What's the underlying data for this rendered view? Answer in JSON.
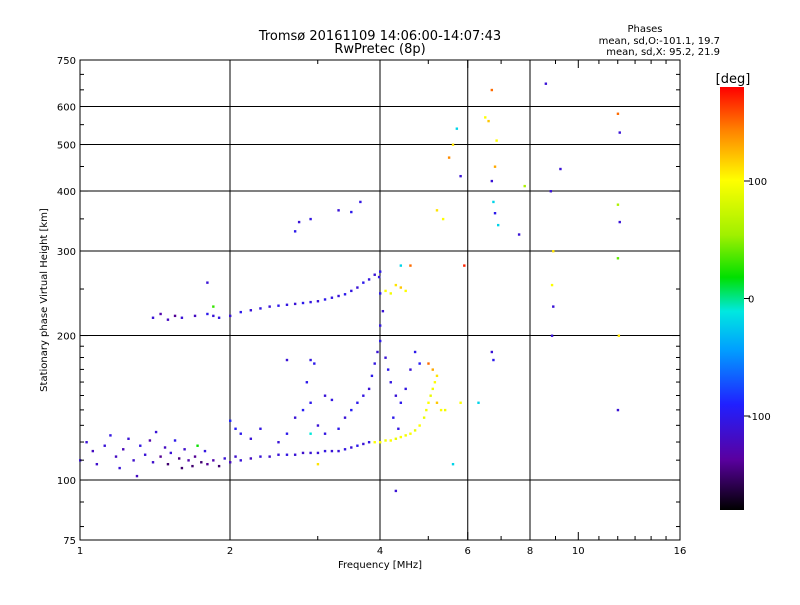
{
  "header": {
    "title_line1": "Tromsø 20161109 14:06:00-14:07:43",
    "title_line2": "RwPretec (8p)"
  },
  "phases": {
    "heading": "Phases",
    "line_o": "mean, sd,O:-101.1, 19.7",
    "line_x": "mean, sd,X:  95.2, 21.9"
  },
  "colorbar": {
    "unit": "[deg]",
    "ticks": [
      {
        "value": 100,
        "label": "100"
      },
      {
        "value": 0,
        "label": "0"
      },
      {
        "value": -100,
        "label": "-100"
      }
    ],
    "range": [
      -180,
      180
    ]
  },
  "chart_data": {
    "type": "scatter",
    "title": "Tromsø 20161109 14:06:00-14:07:43",
    "subtitle": "RwPretec (8p)",
    "xlabel": "Frequency [MHz]",
    "ylabel": "Stationary phase Virtual Height [km]",
    "x_scale": "log",
    "y_scale": "log",
    "xlim": [
      1,
      16
    ],
    "ylim": [
      75,
      750
    ],
    "x_ticks": [
      {
        "value": 1,
        "label": "1"
      },
      {
        "value": 2,
        "label": "2"
      },
      {
        "value": 4,
        "label": "4"
      },
      {
        "value": 6,
        "label": "6"
      },
      {
        "value": 8,
        "label": "8"
      },
      {
        "value": 10,
        "label": "10"
      },
      {
        "value": 16,
        "label": "16"
      }
    ],
    "y_ticks": [
      {
        "value": 75,
        "label": "75"
      },
      {
        "value": 100,
        "label": "100"
      },
      {
        "value": 200,
        "label": "200"
      },
      {
        "value": 300,
        "label": "300"
      },
      {
        "value": 400,
        "label": "400"
      },
      {
        "value": 500,
        "label": "500"
      },
      {
        "value": 600,
        "label": "600"
      },
      {
        "value": 750,
        "label": "750"
      }
    ],
    "grid_x": [
      2,
      4,
      6,
      8
    ],
    "grid_y": [
      100,
      200,
      300,
      400,
      500,
      600
    ],
    "color_scale": "rainbow",
    "color_label": "[deg]",
    "points": [
      [
        1.0,
        110,
        -110
      ],
      [
        1.03,
        120,
        -110
      ],
      [
        1.06,
        115,
        -120
      ],
      [
        1.08,
        108,
        -115
      ],
      [
        1.12,
        118,
        -110
      ],
      [
        1.15,
        124,
        -105
      ],
      [
        1.18,
        112,
        -120
      ],
      [
        1.2,
        106,
        -110
      ],
      [
        1.22,
        116,
        -125
      ],
      [
        1.25,
        122,
        -110
      ],
      [
        1.28,
        110,
        -115
      ],
      [
        1.3,
        102,
        -120
      ],
      [
        1.32,
        118,
        -105
      ],
      [
        1.35,
        113,
        -110
      ],
      [
        1.38,
        121,
        -130
      ],
      [
        1.4,
        109,
        -115
      ],
      [
        1.42,
        126,
        -110
      ],
      [
        1.45,
        112,
        -140
      ],
      [
        1.48,
        117,
        -120
      ],
      [
        1.5,
        108,
        -150
      ],
      [
        1.52,
        114,
        -110
      ],
      [
        1.55,
        121,
        -100
      ],
      [
        1.58,
        111,
        -145
      ],
      [
        1.6,
        106,
        -150
      ],
      [
        1.62,
        116,
        -115
      ],
      [
        1.65,
        110,
        -130
      ],
      [
        1.68,
        107,
        -150
      ],
      [
        1.7,
        112,
        -140
      ],
      [
        1.72,
        118,
        20
      ],
      [
        1.75,
        109,
        -150
      ],
      [
        1.78,
        115,
        -105
      ],
      [
        1.8,
        108,
        -140
      ],
      [
        1.85,
        110,
        -130
      ],
      [
        1.9,
        107,
        -150
      ],
      [
        1.95,
        111,
        -110
      ],
      [
        2.0,
        109,
        -120
      ],
      [
        2.05,
        112,
        -115
      ],
      [
        2.1,
        110,
        -110
      ],
      [
        2.2,
        111,
        -120
      ],
      [
        2.3,
        112,
        -110
      ],
      [
        2.4,
        112,
        -115
      ],
      [
        2.5,
        113,
        -110
      ],
      [
        2.6,
        113,
        -105
      ],
      [
        2.7,
        113,
        -110
      ],
      [
        2.8,
        114,
        -115
      ],
      [
        2.9,
        114,
        -110
      ],
      [
        3.0,
        114,
        -110
      ],
      [
        3.1,
        115,
        -105
      ],
      [
        3.2,
        115,
        -110
      ],
      [
        3.3,
        115,
        -110
      ],
      [
        3.4,
        116,
        -105
      ],
      [
        3.5,
        117,
        -110
      ],
      [
        3.6,
        118,
        -100
      ],
      [
        3.7,
        119,
        -110
      ],
      [
        3.8,
        120,
        -105
      ],
      [
        3.9,
        120,
        100
      ],
      [
        4.0,
        120,
        100
      ],
      [
        4.1,
        121,
        95
      ],
      [
        4.2,
        121,
        100
      ],
      [
        4.3,
        122,
        90
      ],
      [
        4.4,
        123,
        100
      ],
      [
        4.5,
        124,
        95
      ],
      [
        4.6,
        125,
        100
      ],
      [
        4.7,
        127,
        90
      ],
      [
        4.8,
        130,
        100
      ],
      [
        4.9,
        135,
        90
      ],
      [
        4.95,
        140,
        95
      ],
      [
        5.0,
        145,
        100
      ],
      [
        5.05,
        150,
        90
      ],
      [
        5.1,
        155,
        95
      ],
      [
        5.15,
        160,
        100
      ],
      [
        5.2,
        165,
        110
      ],
      [
        5.1,
        170,
        130
      ],
      [
        5.0,
        175,
        150
      ],
      [
        5.2,
        145,
        120
      ],
      [
        5.3,
        140,
        100
      ],
      [
        5.4,
        140,
        95
      ],
      [
        2.0,
        133,
        -90
      ],
      [
        2.05,
        128,
        -95
      ],
      [
        2.1,
        125,
        -100
      ],
      [
        2.2,
        122,
        -110
      ],
      [
        2.3,
        128,
        -105
      ],
      [
        2.5,
        120,
        -110
      ],
      [
        2.6,
        125,
        -100
      ],
      [
        2.8,
        140,
        -95
      ],
      [
        2.9,
        145,
        -100
      ],
      [
        3.0,
        130,
        -110
      ],
      [
        3.1,
        125,
        -105
      ],
      [
        3.3,
        128,
        -100
      ],
      [
        3.4,
        135,
        -110
      ],
      [
        3.5,
        140,
        -95
      ],
      [
        3.6,
        145,
        -100
      ],
      [
        3.7,
        150,
        -105
      ],
      [
        3.8,
        155,
        -110
      ],
      [
        3.85,
        165,
        -100
      ],
      [
        3.9,
        175,
        -105
      ],
      [
        3.95,
        185,
        -110
      ],
      [
        4.0,
        195,
        -100
      ],
      [
        4.0,
        210,
        -105
      ],
      [
        4.05,
        225,
        -110
      ],
      [
        4.0,
        245,
        -100
      ],
      [
        3.98,
        265,
        -105
      ],
      [
        4.1,
        180,
        -110
      ],
      [
        4.15,
        170,
        -100
      ],
      [
        4.2,
        160,
        -105
      ],
      [
        4.3,
        150,
        -110
      ],
      [
        4.4,
        145,
        -100
      ],
      [
        4.5,
        155,
        -105
      ],
      [
        4.6,
        170,
        -110
      ],
      [
        4.7,
        185,
        -100
      ],
      [
        4.8,
        175,
        -95
      ],
      [
        4.25,
        135,
        -100
      ],
      [
        4.35,
        128,
        -105
      ],
      [
        1.4,
        218,
        -110
      ],
      [
        1.45,
        222,
        -130
      ],
      [
        1.5,
        216,
        -120
      ],
      [
        1.55,
        220,
        -140
      ],
      [
        1.6,
        218,
        -110
      ],
      [
        1.7,
        220,
        -120
      ],
      [
        1.8,
        222,
        -100
      ],
      [
        1.85,
        220,
        -110
      ],
      [
        1.9,
        218,
        -105
      ],
      [
        2.0,
        220,
        -110
      ],
      [
        2.1,
        224,
        -100
      ],
      [
        2.2,
        226,
        -110
      ],
      [
        2.3,
        228,
        -105
      ],
      [
        2.4,
        230,
        -110
      ],
      [
        2.5,
        231,
        -100
      ],
      [
        2.6,
        232,
        -105
      ],
      [
        2.7,
        233,
        -110
      ],
      [
        2.8,
        234,
        -100
      ],
      [
        2.9,
        235,
        -105
      ],
      [
        3.0,
        236,
        -110
      ],
      [
        3.1,
        238,
        -100
      ],
      [
        3.2,
        240,
        -105
      ],
      [
        3.3,
        242,
        -110
      ],
      [
        3.4,
        244,
        -100
      ],
      [
        3.5,
        248,
        -105
      ],
      [
        3.6,
        252,
        -110
      ],
      [
        3.7,
        258,
        -100
      ],
      [
        3.8,
        262,
        -105
      ],
      [
        3.9,
        268,
        -110
      ],
      [
        4.0,
        272,
        -100
      ],
      [
        4.1,
        248,
        100
      ],
      [
        4.2,
        245,
        95
      ],
      [
        4.3,
        255,
        110
      ],
      [
        4.4,
        252,
        120
      ],
      [
        4.5,
        248,
        100
      ],
      [
        1.8,
        258,
        -110
      ],
      [
        1.85,
        230,
        30
      ],
      [
        2.7,
        330,
        -100
      ],
      [
        2.75,
        345,
        -110
      ],
      [
        2.9,
        350,
        -105
      ],
      [
        3.3,
        365,
        -110
      ],
      [
        3.5,
        362,
        -100
      ],
      [
        3.65,
        380,
        -105
      ],
      [
        2.6,
        178,
        -110
      ],
      [
        2.9,
        178,
        -105
      ],
      [
        2.95,
        175,
        -100
      ],
      [
        3.1,
        150,
        -110
      ],
      [
        3.2,
        147,
        -105
      ],
      [
        2.7,
        135,
        -110
      ],
      [
        2.85,
        160,
        -100
      ],
      [
        2.9,
        125,
        -10
      ],
      [
        3.0,
        108,
        110
      ],
      [
        4.3,
        95,
        -110
      ],
      [
        4.4,
        280,
        -20
      ],
      [
        4.6,
        280,
        150
      ],
      [
        5.2,
        365,
        110
      ],
      [
        5.35,
        350,
        100
      ],
      [
        5.5,
        470,
        140
      ],
      [
        5.6,
        500,
        110
      ],
      [
        5.7,
        540,
        -20
      ],
      [
        5.8,
        430,
        -110
      ],
      [
        5.9,
        280,
        170
      ],
      [
        5.6,
        108,
        -20
      ],
      [
        5.8,
        145,
        100
      ],
      [
        6.3,
        145,
        -20
      ],
      [
        6.5,
        570,
        100
      ],
      [
        6.6,
        560,
        120
      ],
      [
        6.7,
        650,
        150
      ],
      [
        6.8,
        450,
        130
      ],
      [
        6.85,
        510,
        100
      ],
      [
        6.7,
        420,
        -110
      ],
      [
        6.75,
        380,
        -20
      ],
      [
        6.8,
        360,
        -100
      ],
      [
        6.9,
        340,
        -20
      ],
      [
        6.7,
        185,
        -110
      ],
      [
        6.75,
        178,
        -100
      ],
      [
        7.8,
        410,
        60
      ],
      [
        7.6,
        325,
        -110
      ],
      [
        8.6,
        670,
        -110
      ],
      [
        8.8,
        400,
        -110
      ],
      [
        8.9,
        300,
        110
      ],
      [
        8.85,
        255,
        100
      ],
      [
        8.9,
        230,
        -110
      ],
      [
        8.85,
        200,
        -110
      ],
      [
        9.2,
        445,
        -110
      ],
      [
        12.0,
        580,
        150
      ],
      [
        12.1,
        530,
        -110
      ],
      [
        12.0,
        375,
        60
      ],
      [
        12.1,
        345,
        -110
      ],
      [
        12.0,
        290,
        40
      ],
      [
        12.05,
        200,
        110
      ],
      [
        12.0,
        140,
        -110
      ]
    ]
  }
}
